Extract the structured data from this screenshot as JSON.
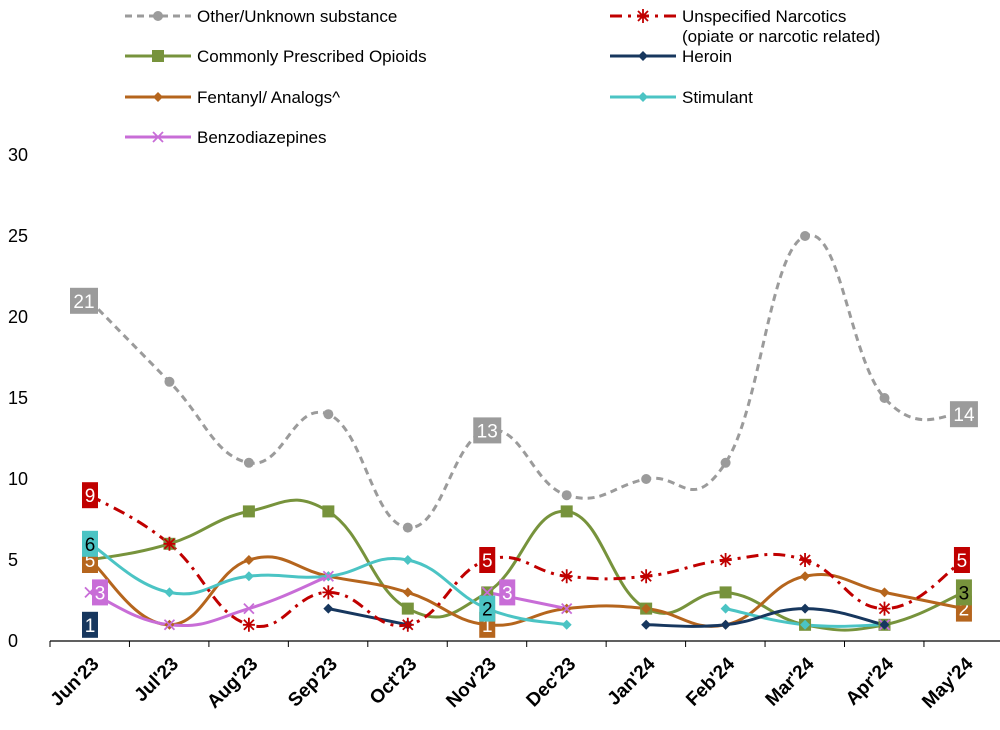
{
  "chart_data": {
    "type": "line",
    "title": "",
    "xlabel": "",
    "ylabel": "",
    "ylim": [
      0,
      30
    ],
    "yticks": [
      0,
      5,
      10,
      15,
      20,
      25,
      30
    ],
    "grid": false,
    "legend_position": "top",
    "categories": [
      "Jun'23",
      "Jul'23",
      "Aug'23",
      "Sep'23",
      "Oct'23",
      "Nov'23",
      "Dec'23",
      "Jan'24",
      "Feb'24",
      "Mar'24",
      "Apr'24",
      "May'24"
    ],
    "series": [
      {
        "name": "Other/Unknown substance",
        "color": "#9b9b9b",
        "dash": "dashed",
        "marker": "circle",
        "values": [
          21,
          16,
          11,
          14,
          7,
          13,
          9,
          10,
          11,
          25,
          15,
          14
        ],
        "labeled_points": [
          0,
          5,
          11
        ]
      },
      {
        "name": "Unspecified Narcotics (opiate or narcotic related)",
        "name_lines": [
          "Unspecified Narcotics",
          "(opiate or narcotic related)"
        ],
        "color": "#c00000",
        "dash": "dashdot",
        "marker": "star",
        "values": [
          9,
          6,
          1,
          3,
          1,
          5,
          4,
          4,
          5,
          5,
          2,
          5
        ],
        "labeled_points": [
          0,
          5,
          11
        ]
      },
      {
        "name": "Commonly Prescribed Opioids",
        "color": "#77933c",
        "dash": "solid",
        "marker": "square",
        "values": [
          5,
          6,
          8,
          8,
          2,
          3,
          8,
          2,
          3,
          1,
          1,
          3
        ],
        "labeled_points": [
          11
        ]
      },
      {
        "name": "Heroin",
        "color": "#17375e",
        "dash": "solid",
        "marker": "diamond",
        "values": [
          1,
          null,
          null,
          2,
          1,
          null,
          null,
          1,
          1,
          2,
          1,
          null
        ],
        "labeled_points": [
          0
        ]
      },
      {
        "name": "Fentanyl/ Analogs^",
        "color": "#b5651d",
        "dash": "solid",
        "marker": "diamond",
        "values": [
          5,
          1,
          5,
          4,
          3,
          1,
          2,
          2,
          1,
          4,
          3,
          2
        ],
        "labeled_points": [
          0,
          5,
          11
        ]
      },
      {
        "name": "Stimulant",
        "color": "#4bc4c4",
        "dash": "solid",
        "marker": "diamond",
        "values": [
          6,
          3,
          4,
          4,
          5,
          2,
          1,
          null,
          2,
          1,
          1,
          null
        ],
        "labeled_points": [
          0,
          5
        ]
      },
      {
        "name": "Benzodiazepines",
        "color": "#c86dd7",
        "dash": "solid",
        "marker": "x",
        "values": [
          3,
          1,
          2,
          4,
          null,
          3,
          2,
          null,
          null,
          null,
          1,
          null
        ],
        "labeled_points": [
          0,
          5
        ]
      }
    ]
  }
}
